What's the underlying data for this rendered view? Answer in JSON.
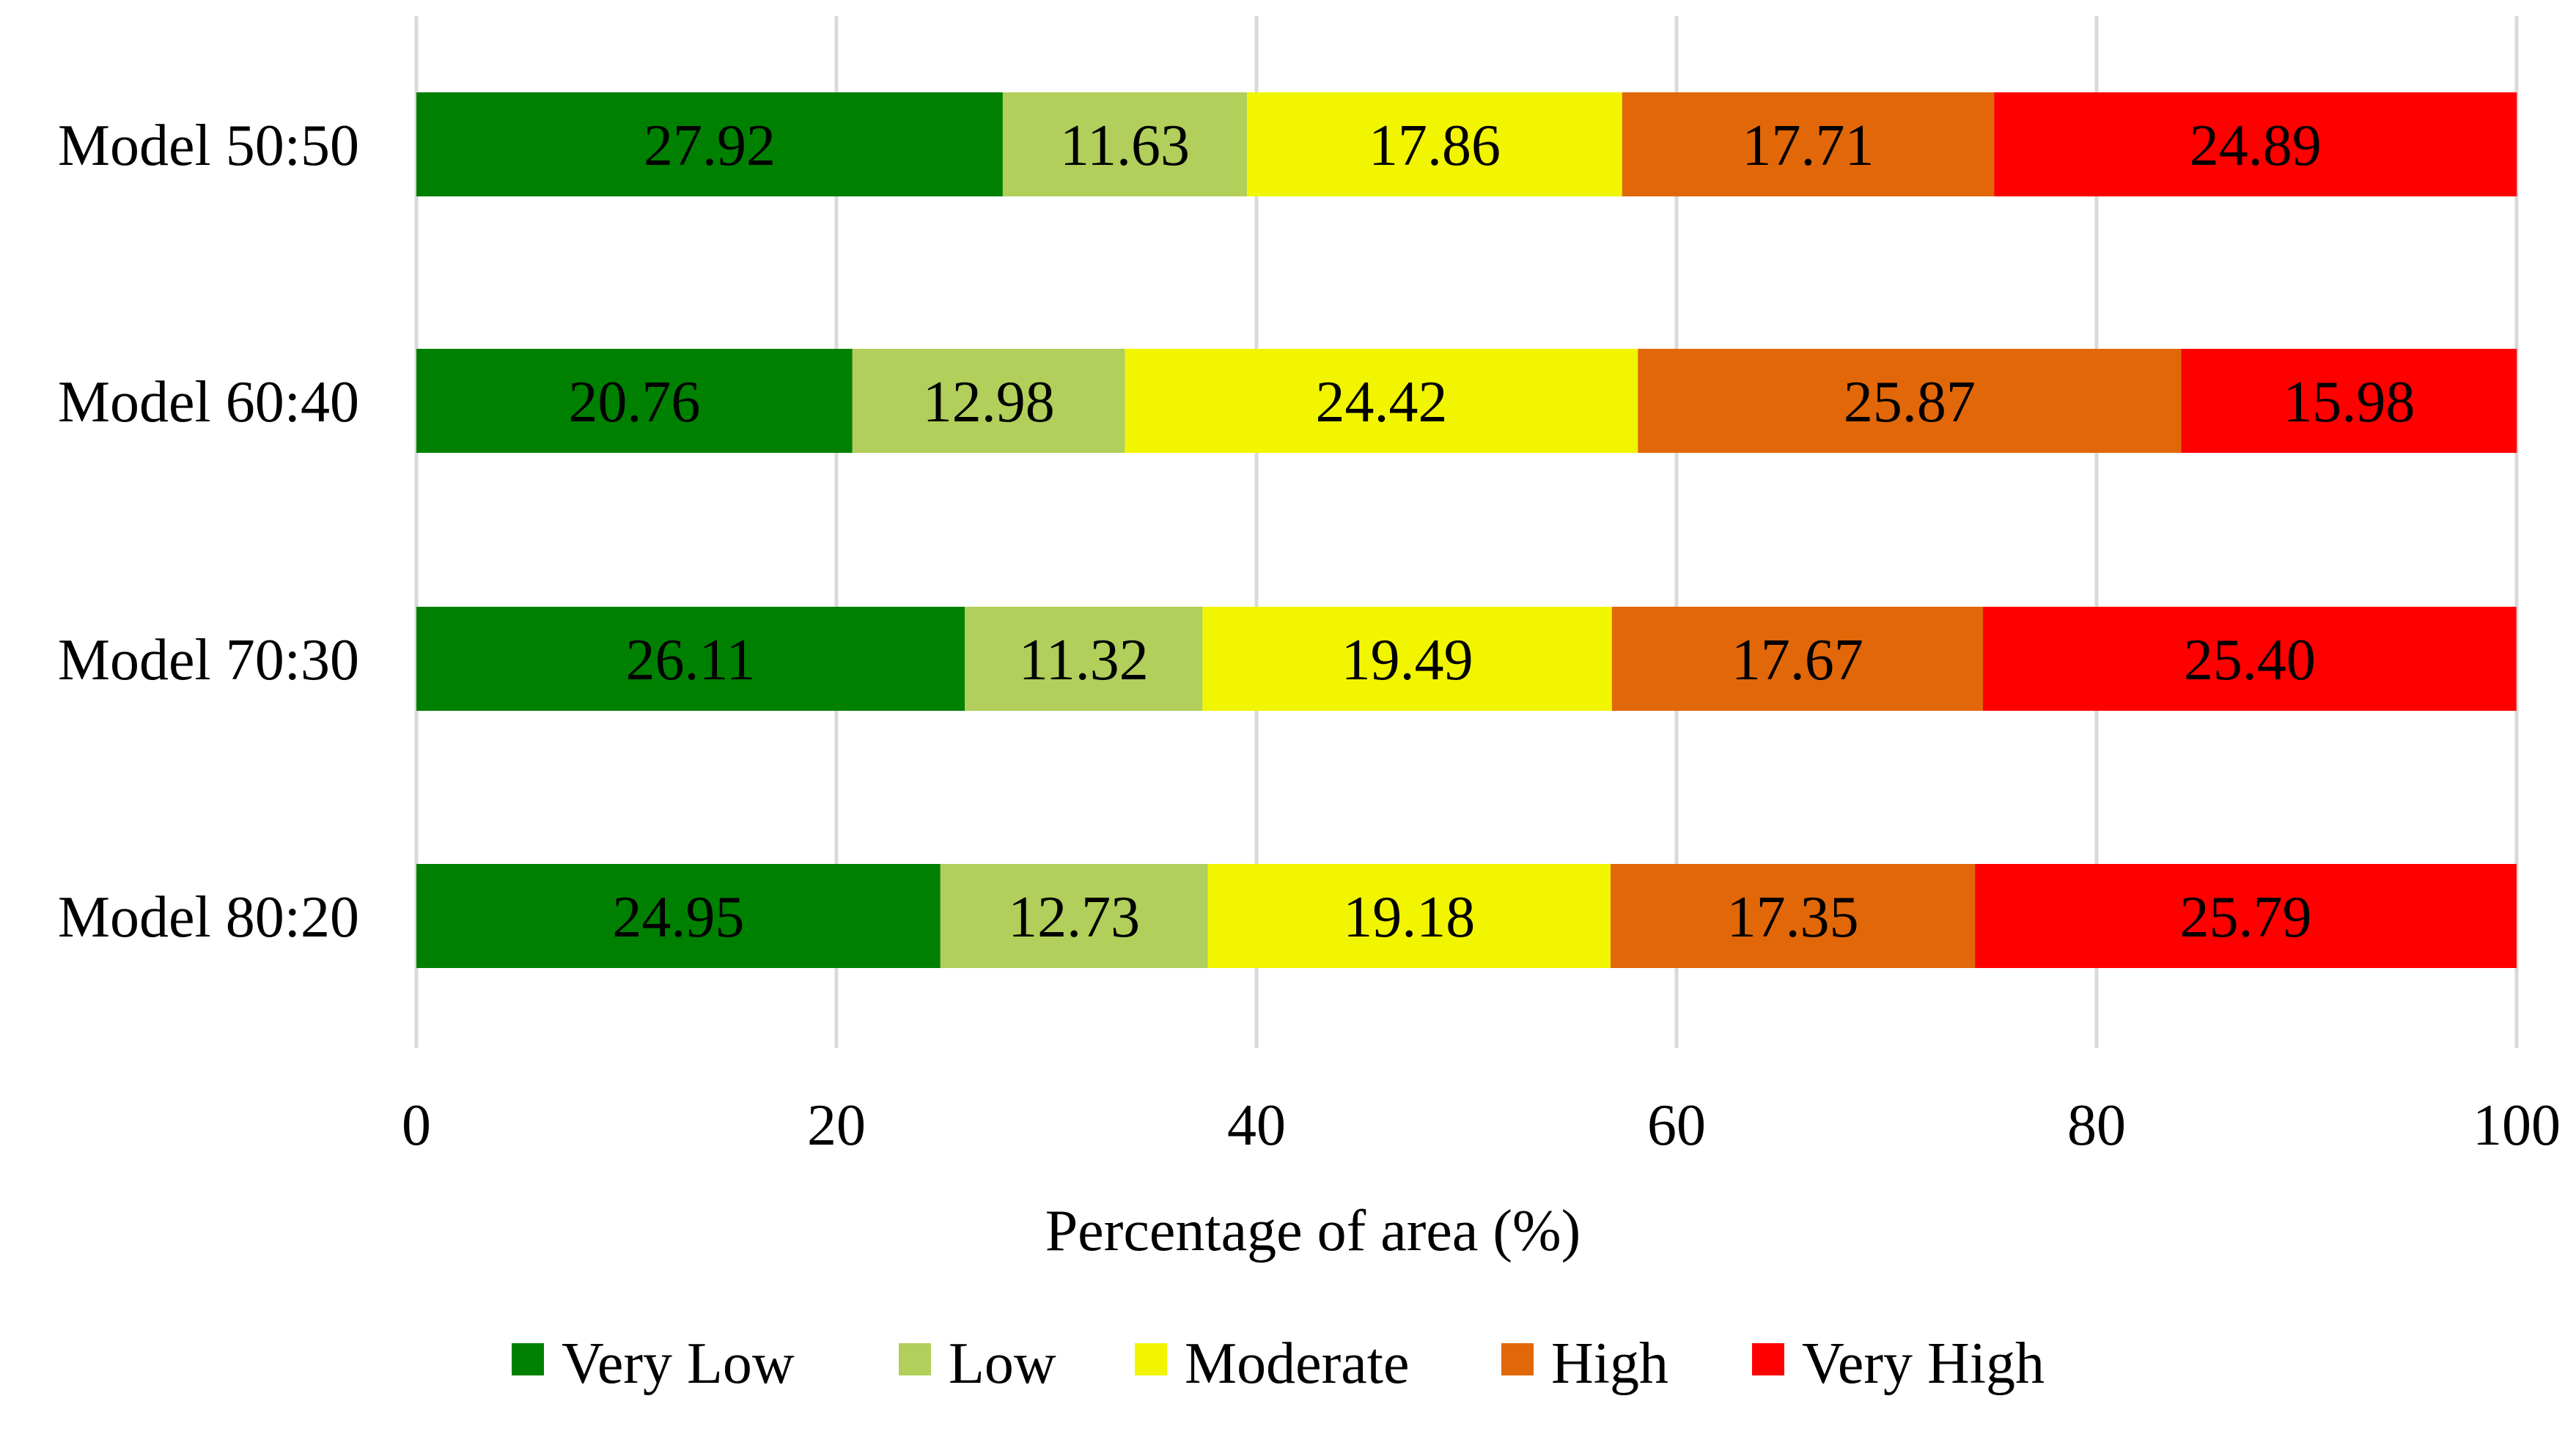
{
  "chart_data": {
    "type": "bar",
    "orientation": "horizontal",
    "stacked": true,
    "title": "",
    "xlabel": "Percentage of area (%)",
    "ylabel": "",
    "xlim": [
      0,
      100
    ],
    "xticks": [
      0,
      20,
      40,
      60,
      80,
      100
    ],
    "grid": true,
    "legend_position": "bottom",
    "categories": [
      "Model 50:50",
      "Model 60:40",
      "Model 70:30",
      "Model 80:20"
    ],
    "series": [
      {
        "name": "Very Low",
        "color": "#008000",
        "values": [
          27.92,
          20.76,
          26.11,
          24.95
        ],
        "labels": [
          "27.92",
          "20.76",
          "26.11",
          "24.95"
        ]
      },
      {
        "name": "Low",
        "color": "#B1CF5A",
        "values": [
          11.63,
          12.98,
          11.32,
          12.73
        ],
        "labels": [
          "11.63",
          "12.98",
          "11.32",
          "12.73"
        ]
      },
      {
        "name": "Moderate",
        "color": "#F2F500",
        "values": [
          17.86,
          24.42,
          19.49,
          19.18
        ],
        "labels": [
          "17.86",
          "24.42",
          "19.49",
          "19.18"
        ]
      },
      {
        "name": "High",
        "color": "#E26708",
        "values": [
          17.71,
          25.87,
          17.67,
          17.35
        ],
        "labels": [
          "17.71",
          "25.87",
          "17.67",
          "17.35"
        ]
      },
      {
        "name": "Very High",
        "color": "#FF0000",
        "values": [
          24.89,
          15.98,
          25.4,
          25.79
        ],
        "labels": [
          "24.89",
          "15.98",
          "25.40",
          "25.79"
        ]
      }
    ]
  }
}
